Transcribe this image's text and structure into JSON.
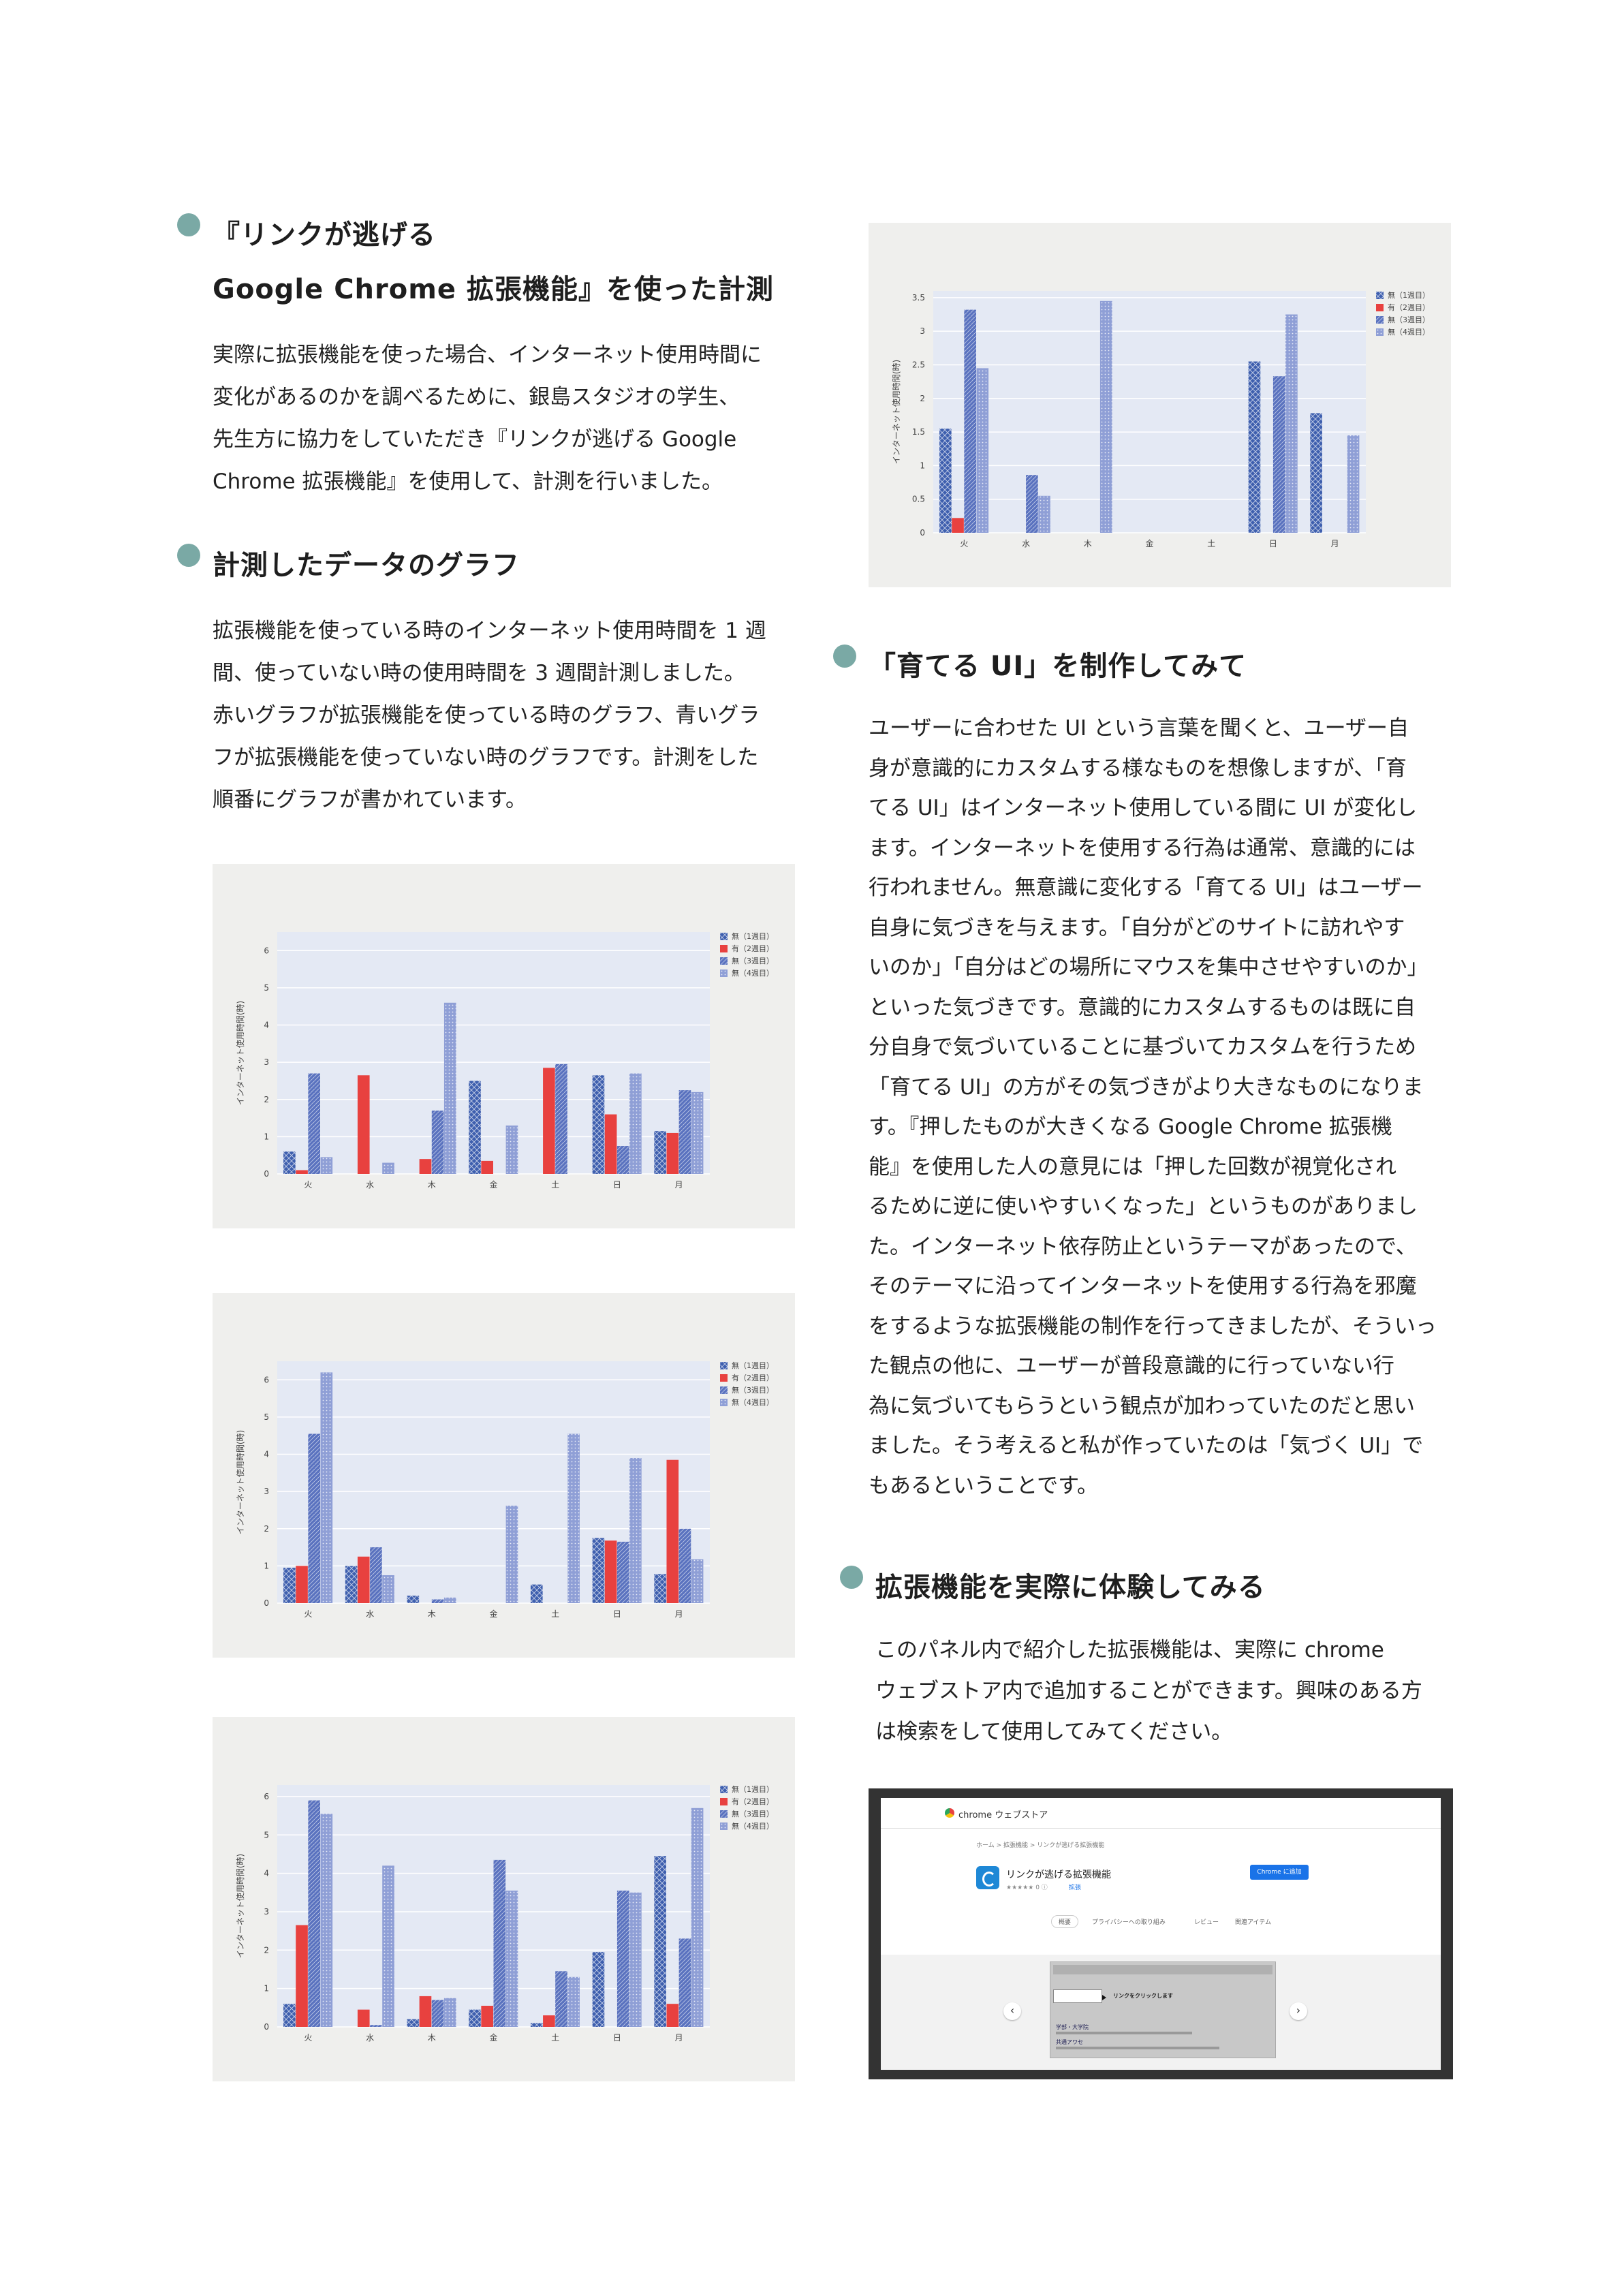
{
  "sections": {
    "measure": {
      "title_line1": "『リンクが逃げる",
      "title_line2": "Google Chrome 拡張機能』を使った計測",
      "paragraph": [
        "実際に拡張機能を使った場合、インターネット使用時間に",
        "変化があるのかを調べるために、銀島スタジオの学生、",
        "先生方に協力をしていただき『リンクが逃げる Google",
        "Chrome 拡張機能』を使用して、計測を行いました。"
      ]
    },
    "graph": {
      "title": "計測したデータのグラフ",
      "paragraph": [
        "拡張機能を使っている時のインターネット使用時間を 1 週",
        "間、使っていない時の使用時間を 3 週間計測しました。",
        "赤いグラフが拡張機能を使っている時のグラフ、青いグラ",
        "フが拡張機能を使っていない時のグラフです。計測をした",
        "順番にグラフが書かれています。"
      ]
    },
    "grow_ui": {
      "title": "「育てる UI」を制作してみて",
      "paragraph": [
        "ユーザーに合わせた UI という言葉を聞くと、ユーザー自",
        "身が意識的にカスタムする様なものを想像しますが、「育",
        "てる UI」はインターネット使用している間に UI が変化し",
        "ます。インターネットを使用する行為は通常、意識的には",
        "行われません。無意識に変化する「育てる UI」はユーザー",
        "自身に気づきを与えます。「自分がどのサイトに訪れやす",
        "いのか」「自分はどの場所にマウスを集中させやすいのか」",
        "といった気づきです。意識的にカスタムするものは既に自",
        "分自身で気づいていることに基づいてカスタムを行うため",
        "「育てる UI」の方がその気づきがより大きなものになりま",
        "す。『押したものが大きくなる Google Chrome 拡張機",
        "能』を使用した人の意見には「押した回数が視覚化され",
        "るために逆に使いやすいくなった」というものがありまし",
        "た。インターネット依存防止というテーマがあったので、",
        "そのテーマに沿ってインターネットを使用する行為を邪魔",
        "をするような拡張機能の制作を行ってきましたが、そういっ",
        "た観点の他に、ユーザーが普段意識的に行っていない行",
        "為に気づいてもらうという観点が加わっていたのだと思い",
        "ました。そう考えると私が作っていたのは「気づく UI」で",
        "もあるということです。"
      ]
    },
    "try": {
      "title": "拡張機能を実際に体験してみる",
      "paragraph": [
        "このパネル内で紹介した拡張機能は、実際に chrome",
        "ウェブストア内で追加することができます。興味のある方",
        "は検索をして使用してみてください。"
      ]
    }
  },
  "chart_legend": [
    "無（1週目）",
    "有（2週目）",
    "無（3週目）",
    "無（4週目）"
  ],
  "chart_ylabel": "インターネット使用時間(時)",
  "colors": {
    "week1": "#3e5fae",
    "week2": "#e8413f",
    "week3": "#5a72bf",
    "week4": "#8f9fd6",
    "plot_bg": "#e4e9f4",
    "panel_bg": "#efefed",
    "accent_dot": "#7aa9a5"
  },
  "chart_data": [
    {
      "type": "bar",
      "categories": [
        "火",
        "水",
        "木",
        "金",
        "土",
        "日",
        "月"
      ],
      "ylabel": "インターネット使用時間(時)",
      "ylim": [
        0,
        3.6
      ],
      "yticks": [
        0,
        0.5,
        1,
        1.5,
        2,
        2.5,
        3,
        3.5
      ],
      "legend": "top-right",
      "series": [
        {
          "name": "無（1週目）",
          "values": [
            1.55,
            0,
            0,
            0,
            0,
            2.55,
            1.78
          ]
        },
        {
          "name": "有（2週目）",
          "values": [
            0.22,
            0,
            0,
            0,
            0,
            0,
            0
          ]
        },
        {
          "name": "無（3週目）",
          "values": [
            3.32,
            0.86,
            0,
            0,
            0,
            2.33,
            0
          ]
        },
        {
          "name": "無（4週目）",
          "values": [
            2.45,
            0.55,
            3.45,
            0,
            0,
            3.25,
            1.45
          ]
        }
      ]
    },
    {
      "type": "bar",
      "categories": [
        "火",
        "水",
        "木",
        "金",
        "土",
        "日",
        "月"
      ],
      "ylabel": "インターネット使用時間(時)",
      "ylim": [
        0,
        6.5
      ],
      "yticks": [
        0,
        1,
        2,
        3,
        4,
        5,
        6
      ],
      "legend": "top-right",
      "series": [
        {
          "name": "無（1週目）",
          "values": [
            0.6,
            0,
            0,
            2.5,
            0,
            2.65,
            1.15
          ]
        },
        {
          "name": "有（2週目）",
          "values": [
            0.1,
            2.65,
            0.4,
            0.35,
            2.85,
            1.6,
            1.1
          ]
        },
        {
          "name": "無（3週目）",
          "values": [
            2.7,
            0,
            1.7,
            0,
            2.95,
            0.75,
            2.25
          ]
        },
        {
          "name": "無（4週目）",
          "values": [
            0.45,
            0.3,
            4.6,
            1.3,
            0,
            2.7,
            2.2
          ]
        }
      ]
    },
    {
      "type": "bar",
      "categories": [
        "火",
        "水",
        "木",
        "金",
        "土",
        "日",
        "月"
      ],
      "ylabel": "インターネット使用時間(時)",
      "ylim": [
        0,
        6.5
      ],
      "yticks": [
        0,
        1,
        2,
        3,
        4,
        5,
        6
      ],
      "legend": "top-right",
      "series": [
        {
          "name": "無（1週目）",
          "values": [
            0.95,
            1.0,
            0.2,
            0,
            0.5,
            1.75,
            0.78
          ]
        },
        {
          "name": "有（2週目）",
          "values": [
            1.0,
            1.25,
            0,
            0,
            0,
            1.68,
            3.85
          ]
        },
        {
          "name": "無（3週目）",
          "values": [
            4.55,
            1.5,
            0.1,
            0,
            0,
            1.65,
            2.0
          ]
        },
        {
          "name": "無（4週目）",
          "values": [
            6.2,
            0.75,
            0.15,
            2.62,
            4.55,
            3.9,
            1.18
          ]
        }
      ]
    },
    {
      "type": "bar",
      "categories": [
        "火",
        "水",
        "木",
        "金",
        "土",
        "日",
        "月"
      ],
      "ylabel": "インターネット使用時間(時)",
      "ylim": [
        0,
        6.3
      ],
      "yticks": [
        0,
        1,
        2,
        3,
        4,
        5,
        6
      ],
      "legend": "top-right",
      "series": [
        {
          "name": "無（1週目）",
          "values": [
            0.6,
            0,
            0.2,
            0.45,
            0.1,
            1.95,
            4.45
          ]
        },
        {
          "name": "有（2週目）",
          "values": [
            2.65,
            0.45,
            0.8,
            0.55,
            0.3,
            0,
            0.6
          ]
        },
        {
          "name": "無（3週目）",
          "values": [
            5.9,
            0.05,
            0.7,
            4.35,
            1.45,
            3.55,
            2.3
          ]
        },
        {
          "name": "無（4週目）",
          "values": [
            5.55,
            4.2,
            0.75,
            3.55,
            1.3,
            3.5,
            5.7
          ]
        }
      ]
    }
  ],
  "store": {
    "title": "chrome ウェブストア",
    "breadcrumb": "ホーム > 拡張機能 > リンクが逃げる拡張機能",
    "ext_name": "リンクが逃げる拡張機能",
    "rating": "★★★★★ 0 ⓘ",
    "category": "拡張",
    "add_button": "Chrome に追加",
    "tabs": [
      "概要",
      "プライバシーへの取り組み",
      "レビュー",
      "関連アイテム"
    ],
    "shot_caption": "リンクをクリックします",
    "shot_label_a": "学部・大学院",
    "shot_label_b": "共通アワセ",
    "prev": "‹",
    "next": "›"
  }
}
